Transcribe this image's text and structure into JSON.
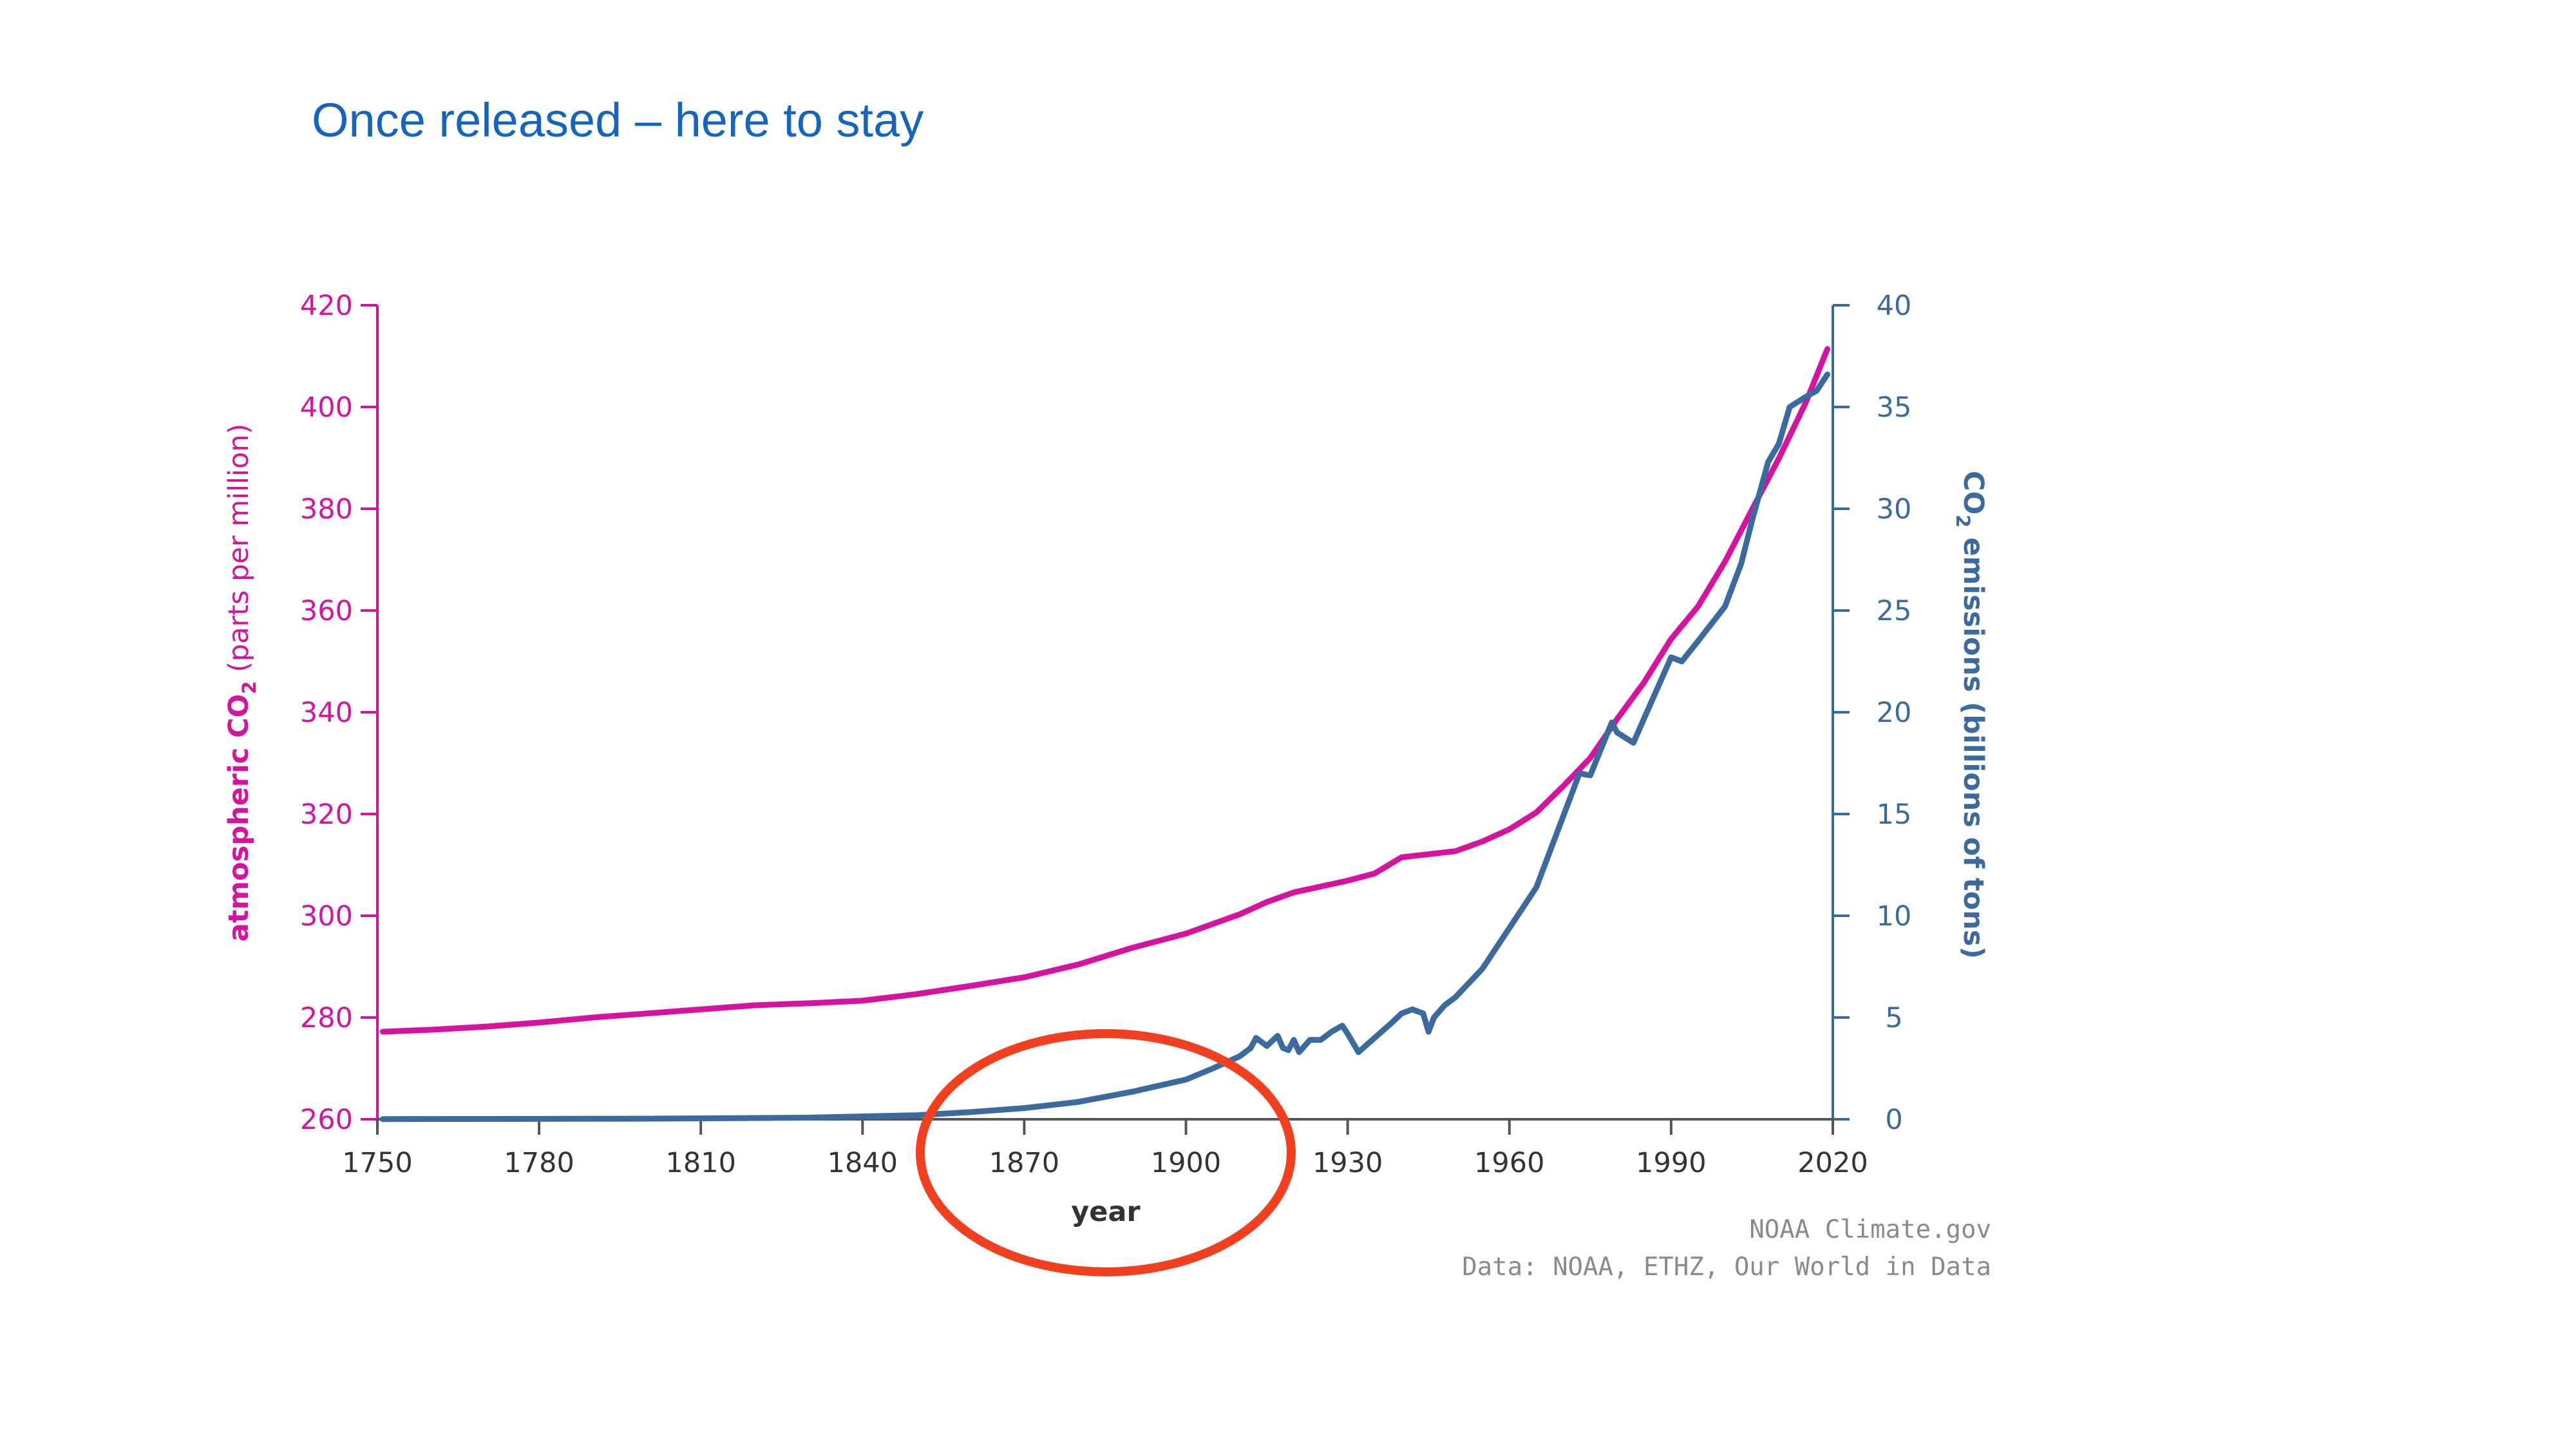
{
  "slide": {
    "title": "Once released – here to stay"
  },
  "chart_data": {
    "type": "line",
    "title": "",
    "xlabel": "year",
    "ylabel_left": {
      "main": "atmospheric CO",
      "sub": "2",
      "rest": " (parts per million)"
    },
    "ylabel_right": {
      "main": "CO",
      "sub": "2",
      "rest": " emissions (billions of tons)"
    },
    "xlim": [
      1750,
      2020
    ],
    "ylim_left": [
      260,
      420
    ],
    "ylim_right": [
      0,
      40
    ],
    "x_ticks": [
      "1750",
      "1780",
      "1810",
      "1840",
      "1870",
      "1900",
      "1930",
      "1960",
      "1990",
      "2020"
    ],
    "y_ticks_left": [
      "260",
      "280",
      "300",
      "320",
      "340",
      "360",
      "380",
      "400",
      "420"
    ],
    "y_ticks_right": [
      "0",
      "5",
      "10",
      "15",
      "20",
      "25",
      "30",
      "35",
      "40"
    ],
    "grid": false,
    "colors": {
      "left": "#d6139f",
      "right": "#3a6a9e",
      "highlight": "#f0401f"
    },
    "series": [
      {
        "axis": "left",
        "x": [
          1751,
          1760,
          1770,
          1780,
          1790,
          1800,
          1810,
          1820,
          1830,
          1840,
          1850,
          1860,
          1870,
          1880,
          1890,
          1900,
          1910,
          1915,
          1920,
          1930,
          1935,
          1940,
          1950,
          1955,
          1960,
          1965,
          1970,
          1975,
          1980,
          1985,
          1990,
          1995,
          2000,
          2005,
          2010,
          2015,
          2019
        ],
        "values": [
          277.2,
          277.6,
          278.2,
          279.0,
          280.0,
          280.8,
          281.6,
          282.4,
          282.8,
          283.3,
          284.6,
          286.2,
          287.9,
          290.4,
          293.7,
          296.5,
          300.3,
          302.7,
          304.6,
          306.9,
          308.3,
          311.5,
          312.7,
          314.6,
          317.0,
          320.3,
          325.5,
          331.0,
          338.7,
          345.9,
          354.4,
          360.8,
          369.6,
          379.8,
          389.9,
          400.9,
          411.4
        ]
      },
      {
        "axis": "right",
        "x": [
          1751,
          1800,
          1830,
          1850,
          1860,
          1870,
          1880,
          1890,
          1900,
          1905,
          1910,
          1912,
          1913,
          1915,
          1917,
          1918,
          1919,
          1920,
          1921,
          1923,
          1925,
          1927,
          1929,
          1930,
          1932,
          1935,
          1938,
          1940,
          1942,
          1944,
          1945,
          1946,
          1948,
          1950,
          1955,
          1960,
          1965,
          1970,
          1973,
          1975,
          1979,
          1980,
          1983,
          1985,
          1990,
          1992,
          1995,
          2000,
          2003,
          2005,
          2008,
          2010,
          2012,
          2015,
          2017,
          2019
        ],
        "values": [
          0.01,
          0.03,
          0.08,
          0.2,
          0.35,
          0.55,
          0.85,
          1.35,
          1.95,
          2.5,
          3.1,
          3.5,
          4.0,
          3.6,
          4.1,
          3.5,
          3.4,
          3.9,
          3.3,
          3.9,
          3.9,
          4.3,
          4.6,
          4.2,
          3.3,
          4.0,
          4.7,
          5.2,
          5.4,
          5.2,
          4.3,
          5.0,
          5.6,
          6.0,
          7.4,
          9.4,
          11.4,
          14.9,
          17.0,
          16.9,
          19.5,
          19.0,
          18.5,
          19.7,
          22.7,
          22.5,
          23.5,
          25.2,
          27.3,
          29.4,
          32.3,
          33.2,
          35.0,
          35.5,
          35.8,
          36.6
        ]
      }
    ],
    "credits": [
      "NOAA Climate.gov",
      "Data: NOAA, ETHZ, Our World in Data"
    ],
    "annotation": "circle around 1870–1900"
  }
}
